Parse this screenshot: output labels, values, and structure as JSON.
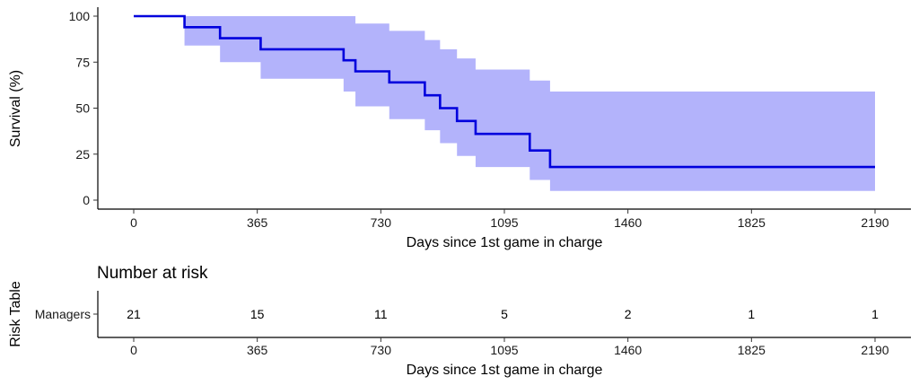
{
  "chart_data": [
    {
      "type": "line",
      "subtype": "kaplan-meier-step",
      "title": "",
      "xlabel": "Days since 1st game in charge",
      "ylabel": "Survival (%)",
      "xlim": [
        0,
        2190
      ],
      "ylim": [
        0,
        100
      ],
      "x_ticks": [
        0,
        365,
        730,
        1095,
        1460,
        1825,
        2190
      ],
      "y_ticks": [
        0,
        25,
        50,
        75,
        100
      ],
      "grid": false,
      "colors": {
        "line": "#0000dd",
        "band": "#b3b3fb"
      },
      "series": [
        {
          "steps": [
            {
              "x": 0,
              "y": 100,
              "lower": 100,
              "upper": 100
            },
            {
              "x": 150,
              "y": 94,
              "lower": 84,
              "upper": 100
            },
            {
              "x": 255,
              "y": 88,
              "lower": 75,
              "upper": 100
            },
            {
              "x": 375,
              "y": 82,
              "lower": 66,
              "upper": 100
            },
            {
              "x": 620,
              "y": 76,
              "lower": 59,
              "upper": 100
            },
            {
              "x": 655,
              "y": 70,
              "lower": 51,
              "upper": 96
            },
            {
              "x": 755,
              "y": 64,
              "lower": 44,
              "upper": 92
            },
            {
              "x": 860,
              "y": 57,
              "lower": 38,
              "upper": 87
            },
            {
              "x": 905,
              "y": 50,
              "lower": 31,
              "upper": 82
            },
            {
              "x": 955,
              "y": 43,
              "lower": 24,
              "upper": 77
            },
            {
              "x": 1010,
              "y": 36,
              "lower": 18,
              "upper": 71
            },
            {
              "x": 1170,
              "y": 27,
              "lower": 11,
              "upper": 65
            },
            {
              "x": 1230,
              "y": 18,
              "lower": 5,
              "upper": 59
            },
            {
              "x": 2190,
              "y": 18,
              "lower": 5,
              "upper": 59
            }
          ]
        }
      ]
    },
    {
      "type": "table",
      "title": "Number at risk",
      "xlabel": "Days since 1st game in charge",
      "ylabel": "Risk Table",
      "xlim": [
        0,
        2190
      ],
      "x_ticks": [
        0,
        365,
        730,
        1095,
        1460,
        1825,
        2190
      ],
      "row_label": "Managers",
      "row_color": "#0000dd",
      "counts": [
        21,
        15,
        11,
        5,
        2,
        1,
        1
      ]
    }
  ]
}
